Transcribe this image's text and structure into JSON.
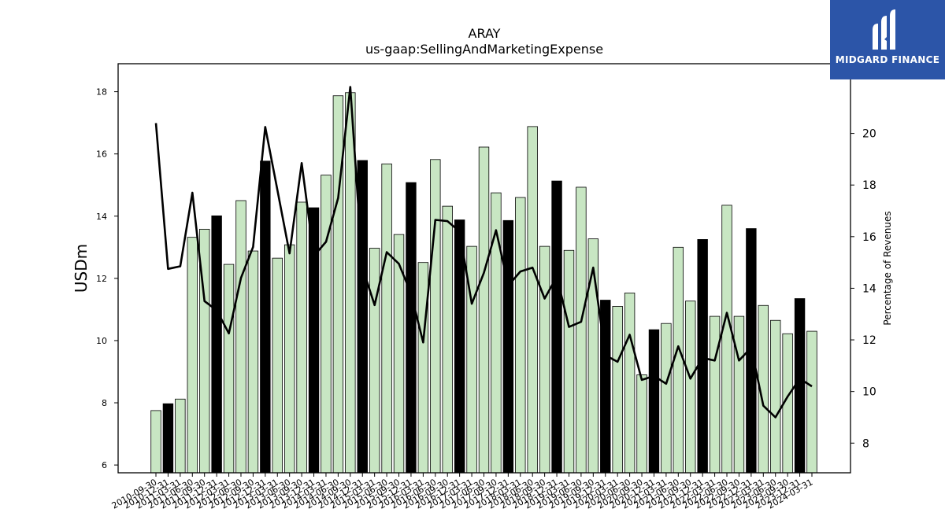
{
  "chart_data": {
    "type": "bar",
    "title": "ARAY",
    "subtitle": "us-gaap:SellingAndMarketingExpense",
    "ylabel": "USDm",
    "y2label": "Percentage of Revenues",
    "ylim": [
      5.75,
      18.9
    ],
    "y2lim": [
      6.85,
      22.7
    ],
    "yticks": [
      6,
      8,
      10,
      12,
      14,
      16,
      18
    ],
    "y2ticks": [
      8,
      10,
      12,
      14,
      16,
      18,
      20
    ],
    "grid": false,
    "categories": [
      "2010-09-30",
      "2010-12-31",
      "2011-03-31",
      "2011-06-30",
      "2011-09-30",
      "2011-12-31",
      "2012-03-31",
      "2012-06-30",
      "2012-09-30",
      "2012-12-31",
      "2013-03-31",
      "2013-06-30",
      "2013-09-30",
      "2013-12-31",
      "2014-03-31",
      "2014-06-30",
      "2014-09-30",
      "2014-12-31",
      "2015-03-31",
      "2015-06-30",
      "2015-09-30",
      "2015-12-31",
      "2016-03-31",
      "2016-06-30",
      "2016-09-30",
      "2016-12-31",
      "2017-03-31",
      "2017-06-30",
      "2017-09-30",
      "2017-12-31",
      "2018-03-31",
      "2018-06-30",
      "2018-09-30",
      "2018-12-31",
      "2019-03-31",
      "2019-06-30",
      "2019-09-30",
      "2019-12-31",
      "2020-03-31",
      "2020-06-30",
      "2020-09-30",
      "2020-12-31",
      "2021-03-31",
      "2021-06-30",
      "2021-09-30",
      "2021-12-31",
      "2022-03-31",
      "2022-06-30",
      "2022-09-30",
      "2022-12-31",
      "2023-03-31",
      "2023-06-30",
      "2023-09-30",
      "2023-12-31",
      "2024-03-31"
    ],
    "series": [
      {
        "type": "bar",
        "values": [
          7.75,
          7.97,
          8.12,
          13.32,
          13.58,
          14.01,
          12.45,
          14.5,
          12.88,
          15.77,
          12.65,
          13.08,
          14.45,
          14.27,
          15.32,
          17.87,
          17.97,
          15.79,
          12.97,
          15.68,
          13.41,
          15.08,
          12.51,
          15.82,
          14.32,
          13.88,
          13.03,
          16.22,
          14.75,
          13.86,
          14.6,
          16.88,
          13.03,
          15.13,
          12.9,
          14.93,
          13.27,
          11.3,
          11.1,
          11.53,
          8.9,
          10.35,
          10.55,
          13.0,
          11.27,
          13.25,
          10.78,
          14.35,
          10.78,
          13.6,
          11.13,
          10.65,
          10.22,
          11.35,
          10.3
        ],
        "colors": {
          "fiscal_year_end": "#000000",
          "other_quarter": "#c8e6c3",
          "edge": "#000000"
        }
      },
      {
        "type": "line",
        "axis": "right",
        "color": "#000000",
        "values": [
          20.4,
          14.75,
          14.85,
          17.7,
          13.5,
          13.15,
          12.25,
          14.4,
          15.6,
          20.25,
          17.8,
          15.35,
          18.85,
          15.25,
          15.8,
          17.5,
          21.8,
          14.8,
          13.35,
          15.4,
          14.95,
          13.8,
          11.9,
          16.65,
          16.6,
          16.2,
          13.4,
          14.6,
          16.25,
          14.1,
          14.65,
          14.8,
          13.6,
          14.45,
          12.5,
          12.7,
          14.8,
          11.4,
          11.15,
          12.2,
          10.45,
          10.6,
          10.3,
          11.75,
          10.5,
          11.3,
          11.2,
          13.05,
          11.2,
          11.7,
          9.45,
          9.0,
          9.8,
          10.5,
          10.2
        ]
      }
    ],
    "fiscal_year_end_indices": [
      1,
      5,
      9,
      13,
      17,
      21,
      25,
      29,
      33,
      37,
      41,
      45,
      49,
      53
    ]
  },
  "logo": {
    "text": "MIDGARD FINANCE",
    "bg_color": "#2c55a8",
    "icon": "midgard-finance-logo-icon"
  }
}
